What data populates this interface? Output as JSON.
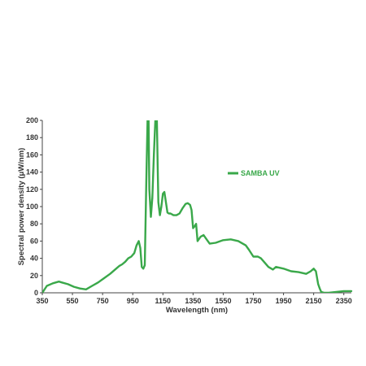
{
  "chart_data": {
    "type": "line",
    "xlabel": "Wavelength (nm)",
    "ylabel": "Spectral power density (μW/nm)",
    "xlim": [
      350,
      2400
    ],
    "ylim": [
      0,
      200
    ],
    "x_ticks": [
      350,
      550,
      750,
      950,
      1150,
      1350,
      1550,
      1750,
      1950,
      2150,
      2350
    ],
    "y_ticks": [
      0,
      20,
      40,
      60,
      80,
      100,
      120,
      140,
      160,
      180,
      200
    ],
    "legend_position": "upper-right",
    "grid": false,
    "series": [
      {
        "name": "SAMBA UV",
        "color": "#3aa84a",
        "x": [
          350,
          380,
          420,
          460,
          480,
          520,
          560,
          600,
          640,
          680,
          720,
          760,
          800,
          840,
          860,
          880,
          900,
          920,
          940,
          960,
          975,
          990,
          1000,
          1010,
          1020,
          1030,
          1040,
          1048,
          1055,
          1060,
          1070,
          1080,
          1090,
          1100,
          1110,
          1115,
          1120,
          1130,
          1140,
          1150,
          1160,
          1170,
          1180,
          1190,
          1200,
          1220,
          1240,
          1260,
          1280,
          1300,
          1315,
          1330,
          1340,
          1350,
          1360,
          1370,
          1380,
          1400,
          1420,
          1440,
          1460,
          1500,
          1550,
          1600,
          1650,
          1700,
          1720,
          1750,
          1780,
          1800,
          1820,
          1850,
          1880,
          1900,
          1950,
          2000,
          2050,
          2100,
          2130,
          2150,
          2165,
          2180,
          2190,
          2200,
          2220,
          2250,
          2300,
          2350,
          2400
        ],
        "y": [
          0,
          8,
          11,
          13,
          12,
          10,
          7,
          5,
          4,
          8,
          12,
          17,
          22,
          28,
          31,
          33,
          36,
          40,
          42,
          46,
          55,
          60,
          52,
          30,
          28,
          32,
          130,
          200,
          200,
          120,
          88,
          110,
          160,
          200,
          200,
          150,
          105,
          90,
          100,
          115,
          117,
          105,
          93,
          92,
          92,
          90,
          90,
          92,
          98,
          103,
          104,
          102,
          96,
          75,
          77,
          80,
          60,
          65,
          67,
          62,
          57,
          58,
          61,
          62,
          60,
          55,
          50,
          42,
          42,
          40,
          36,
          30,
          27,
          30,
          28,
          25,
          24,
          22,
          25,
          28,
          25,
          10,
          5,
          1,
          0,
          0,
          1,
          2,
          2
        ]
      }
    ]
  }
}
